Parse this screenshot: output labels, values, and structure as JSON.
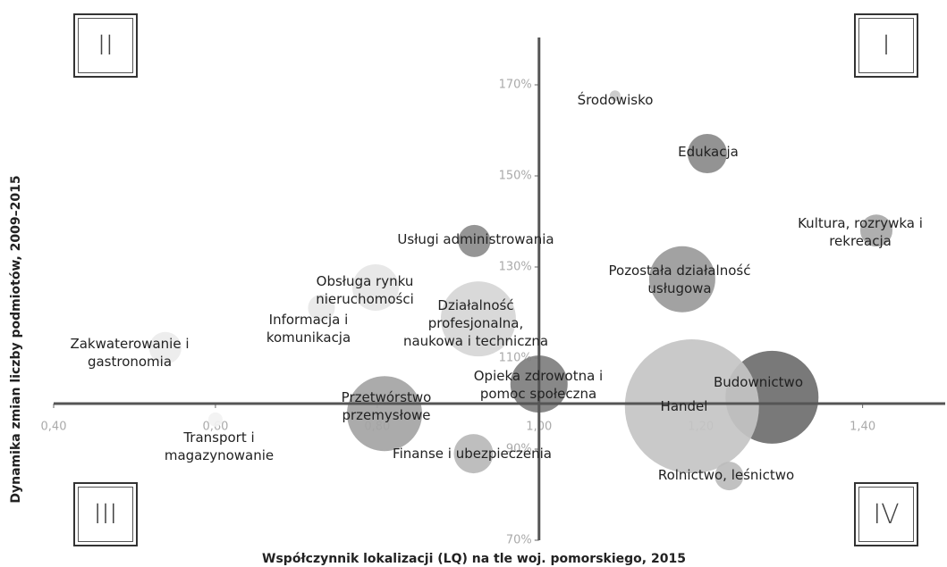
{
  "chart_data": {
    "type": "scatter",
    "x_label": "Współczynnik lokalizacji (LQ) na tle woj. pomorskiego, 2015",
    "y_label": "Dynamika zmian liczby podmiotów, 2009–2015",
    "quadrants": [
      "II",
      "I",
      "III",
      "IV"
    ],
    "names": [
      "Środowisko",
      "Edukacja",
      "Kultura, rozrywka i rekreacja",
      "Usługi administrowania",
      "Pozostała działalność usługowa",
      "Obsługa rynku nieruchomości",
      "Informacja i komunikacja",
      "Działalność profesjonalna, naukowa i techniczna",
      "Zakwaterowanie i gastronomia",
      "Opieka zdrowotna i pomoc społeczna",
      "Przetwórstwo przemysłowe",
      "Transport i magazynowanie",
      "Finanse i ubezpieczenia",
      "Budownictwo",
      "Handel",
      "Rolnictwo, leśnictwo"
    ],
    "x": [
      1.094,
      1.208,
      1.417,
      0.92,
      1.177,
      0.798,
      0.731,
      0.925,
      0.538,
      1.0,
      0.809,
      0.6,
      0.919,
      1.288,
      1.189,
      1.235
    ],
    "y": [
      167.6,
      154.9,
      138.0,
      135.7,
      127.3,
      125.5,
      121.0,
      118.6,
      112.2,
      104.3,
      97.8,
      96.5,
      89.0,
      101.4,
      99.4,
      84.1
    ],
    "sizes": [
      6,
      22,
      18,
      18,
      37,
      26,
      15,
      42,
      18,
      32,
      42,
      8,
      22,
      52,
      75,
      16
    ],
    "colors": [
      "#c8c8c8",
      "#8a8a8a",
      "#a8a8a8",
      "#8c8c8c",
      "#9a9a9a",
      "#e6e6e6",
      "#e8e8e8",
      "#d6d6d6",
      "#ececec",
      "#7e7e7e",
      "#a4a4a4",
      "#f2f2f2",
      "#b8b8b8",
      "#6e6e6e",
      "#c4c4c4",
      "#bcbcbc"
    ],
    "xlim": [
      0.4,
      1.48
    ],
    "ylim": [
      70,
      180
    ],
    "axis_cross": {
      "x": 1.0,
      "y": 100
    },
    "xticks": [
      {
        "value": 0.4,
        "label": "0,40"
      },
      {
        "value": 0.6,
        "label": "0,60"
      },
      {
        "value": 0.8,
        "label": "0,80"
      },
      {
        "value": 1.0,
        "label": "1,00"
      },
      {
        "value": 1.2,
        "label": "1,20"
      },
      {
        "value": 1.4,
        "label": "1,40"
      }
    ],
    "yticks": [
      {
        "value": 70,
        "label": "70%"
      },
      {
        "value": 90,
        "label": "90%"
      },
      {
        "value": 110,
        "label": "110%"
      },
      {
        "value": 130,
        "label": "130%"
      },
      {
        "value": 150,
        "label": "150%"
      },
      {
        "value": 170,
        "label": "170%"
      }
    ]
  }
}
